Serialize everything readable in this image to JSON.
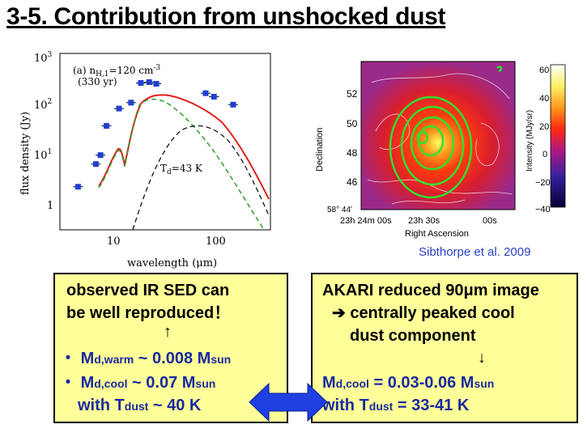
{
  "title": "3-5. Contribution from unshocked dust",
  "sed_plot": {
    "panel_label": "(a) n",
    "panel_label_sub": "H,1",
    "panel_label_rest": "=120 cm",
    "panel_label_exp": "-3",
    "panel_age": "(330 yr)",
    "y_axis_label": "flux density (Jy)",
    "x_axis_label": "wavelength (μm)",
    "y_ticks": [
      "10",
      "10",
      "10",
      "1"
    ],
    "y_tick_exps": [
      "3",
      "2",
      "1",
      ""
    ],
    "x_ticks": [
      "10",
      "100"
    ],
    "td_label_pre": "T",
    "td_label_sub": "d",
    "td_label_post": "=43 K"
  },
  "chart_data": {
    "type": "scatter",
    "xlabel": "wavelength (μm)",
    "ylabel": "flux density (Jy)",
    "xscale": "log",
    "yscale": "log",
    "xlim": [
      4,
      200
    ],
    "ylim": [
      0.5,
      1000
    ],
    "points": [
      {
        "x": 5.6,
        "y": 3.2
      },
      {
        "x": 7.8,
        "y": 8.5
      },
      {
        "x": 8.5,
        "y": 12.5
      },
      {
        "x": 9.5,
        "y": 44
      },
      {
        "x": 12,
        "y": 93
      },
      {
        "x": 15,
        "y": 120
      },
      {
        "x": 18,
        "y": 280
      },
      {
        "x": 21,
        "y": 290
      },
      {
        "x": 24,
        "y": 270
      },
      {
        "x": 60,
        "y": 180
      },
      {
        "x": 70,
        "y": 155
      },
      {
        "x": 100,
        "y": 110
      }
    ],
    "annotation": "Td=43 K"
  },
  "map_image": {
    "y_axis_label": "Declination",
    "x_axis_label": "Right Ascension",
    "colorbar_label": "Intensity (MJy/sr)",
    "y_ticks": [
      "52",
      "50",
      "48",
      "46",
      "58° 44'"
    ],
    "x_ticks": [
      "23h 24m 00s",
      "23h 30s",
      "00s"
    ],
    "colorbar_ticks": [
      "60",
      "40",
      "20",
      "0",
      "−20",
      "−40"
    ]
  },
  "credit": "Sibthorpe et al. 2009",
  "left_box": {
    "line1": "observed IR SED can",
    "line2": "be well reproduced！",
    "arrow": "↑",
    "bullet": "・",
    "warm_prefix": "M",
    "warm_sub": "d,warm",
    "warm_value": " ~ 0.008 M",
    "warm_unit_sub": "sun",
    "cool_prefix": "M",
    "cool_sub": "d,cool",
    "cool_value": " ~ 0.07 M",
    "cool_unit_sub": "sun",
    "with_text": "with T",
    "with_sub": "dust",
    "with_value": " ~ 40 K"
  },
  "right_box": {
    "line1": "AKARI reduced 90μm image",
    "line2": "➔ centrally peaked cool",
    "line3": "dust component",
    "arrow": "↓",
    "cool_prefix": "M",
    "cool_sub": "d,cool",
    "cool_value": " = 0.03-0.06 M",
    "cool_unit_sub": "sun",
    "with_text": "with T",
    "with_sub": "dust",
    "with_value": " = 33-41 K"
  },
  "colors": {
    "blue_text": "#1a2aa0",
    "box_fill": "#ffff99",
    "arrow_fill": "#1f3fe0",
    "model_red": "#e0201e",
    "model_green": "#2aa02a",
    "data_blue": "#1f3fd0"
  }
}
